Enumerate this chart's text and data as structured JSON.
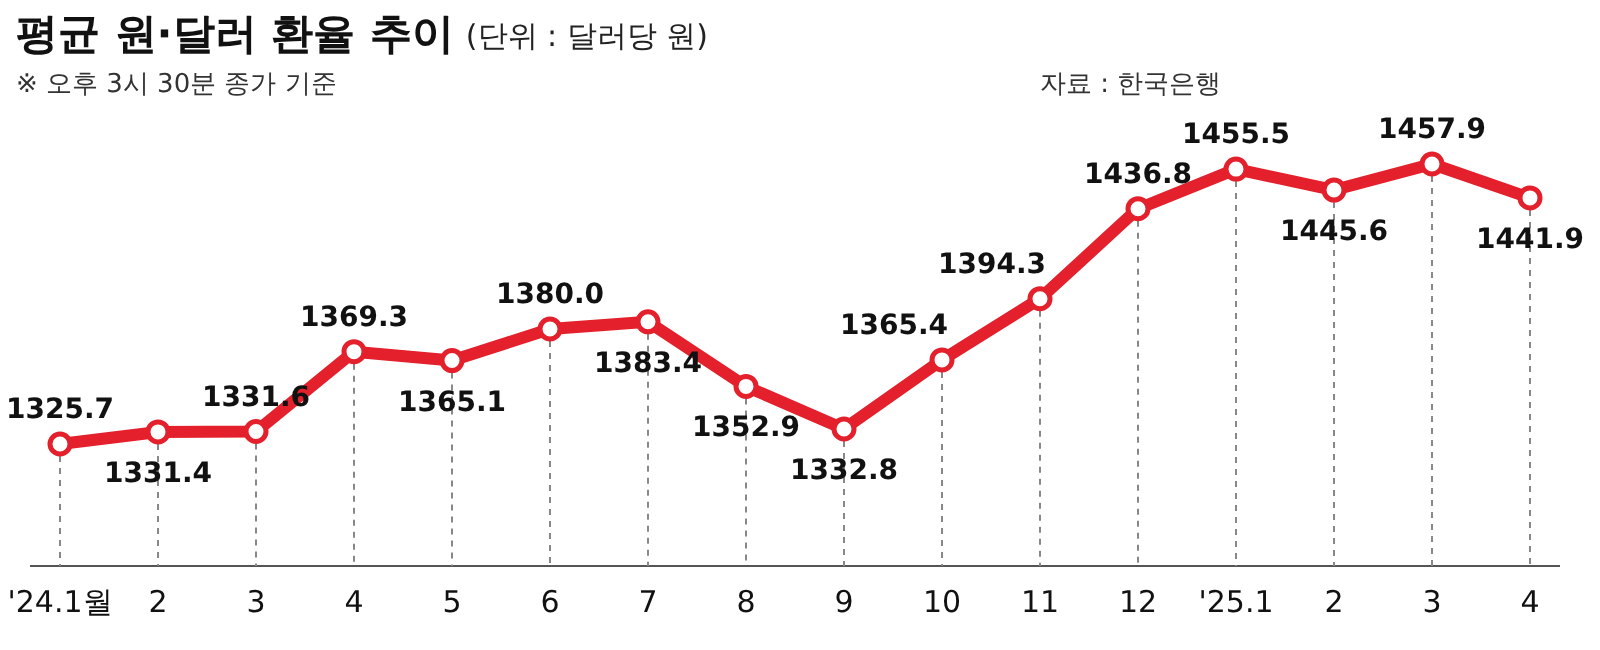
{
  "chart_data": {
    "type": "line",
    "title": "평균 원·달러 환율 추이",
    "subtitle": "(단위 : 달러당 원)",
    "annotations": [
      "※ 오후 3시 30분 종가 기준",
      "자료 : 한국은행"
    ],
    "categories": [
      "'24.1월",
      "2",
      "3",
      "4",
      "5",
      "6",
      "7",
      "8",
      "9",
      "10",
      "11",
      "12",
      "'25.1",
      "2",
      "3",
      "4"
    ],
    "values": [
      1325.7,
      1331.4,
      1331.6,
      1369.3,
      1365.1,
      1380.0,
      1383.4,
      1352.9,
      1332.8,
      1365.4,
      1394.3,
      1436.8,
      1455.5,
      1445.6,
      1457.9,
      1441.9
    ],
    "value_labels": [
      "1325.7",
      "1331.4",
      "1331.6",
      "1369.3",
      "1365.1",
      "1380.0",
      "1383.4",
      "1352.9",
      "1332.8",
      "1365.4",
      "1394.3",
      "1436.8",
      "1455.5",
      "1445.6",
      "1457.9",
      "1441.9"
    ],
    "color": "#e3202b",
    "marker": "circle",
    "line_style": "solid",
    "grid": "x",
    "data_labels": true
  }
}
